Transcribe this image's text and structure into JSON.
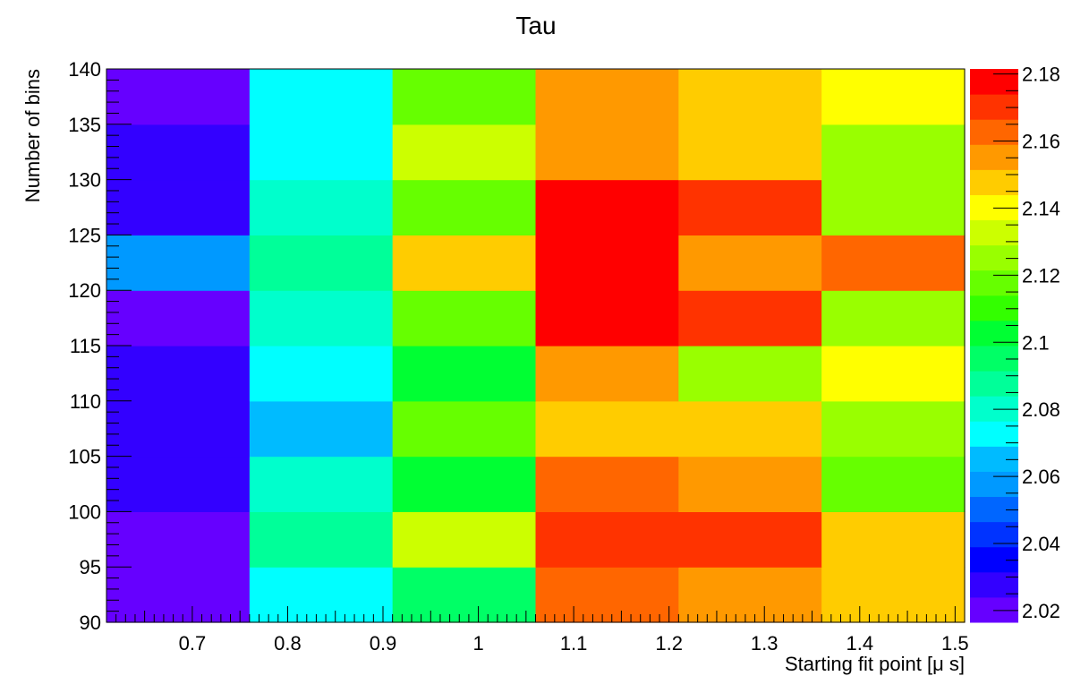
{
  "chart_data": {
    "type": "heatmap",
    "title": "Tau",
    "xlabel": "Starting fit point [μ s]",
    "ylabel": "Number of bins",
    "x_range": [
      0.61,
      1.51
    ],
    "y_range": [
      90,
      140
    ],
    "x_bin_edges": [
      0.61,
      0.76,
      0.91,
      1.06,
      1.21,
      1.36,
      1.51
    ],
    "y_bin_edges": [
      90,
      95,
      100,
      105,
      110,
      115,
      120,
      125,
      130,
      135,
      140
    ],
    "x_ticks": [
      "0.7",
      "0.8",
      "0.9",
      "1",
      "1.1",
      "1.2",
      "1.3",
      "1.4",
      "1.5"
    ],
    "x_tick_values": [
      0.7,
      0.8,
      0.9,
      1.0,
      1.1,
      1.2,
      1.3,
      1.4,
      1.5
    ],
    "y_ticks": [
      "90",
      "95",
      "100",
      "105",
      "110",
      "115",
      "120",
      "125",
      "130",
      "135",
      "140"
    ],
    "y_tick_values": [
      90,
      95,
      100,
      105,
      110,
      115,
      120,
      125,
      130,
      135,
      140
    ],
    "z_range": [
      2.0165,
      2.1815
    ],
    "z_ticks": [
      "2.02",
      "2.04",
      "2.06",
      "2.08",
      "2.1",
      "2.12",
      "2.14",
      "2.16",
      "2.18"
    ],
    "z_tick_values": [
      2.02,
      2.04,
      2.06,
      2.08,
      2.1,
      2.12,
      2.14,
      2.16,
      2.18
    ],
    "palette": [
      "#6600ff",
      "#3300ff",
      "#0000ff",
      "#0033ff",
      "#0066ff",
      "#0099ff",
      "#00bbff",
      "#00ffff",
      "#00ffcc",
      "#00ff99",
      "#00ff66",
      "#00ff33",
      "#33ff00",
      "#66ff00",
      "#99ff00",
      "#ccff00",
      "#ffff00",
      "#ffcc00",
      "#ff9900",
      "#ff6600",
      "#ff3300",
      "#ff0000"
    ],
    "values": [
      [
        2.023,
        2.073,
        2.095,
        2.163,
        2.156,
        2.145
      ],
      [
        2.021,
        2.091,
        2.134,
        2.173,
        2.173,
        2.145
      ],
      [
        2.03,
        2.084,
        2.104,
        2.165,
        2.156,
        2.118
      ],
      [
        2.03,
        2.066,
        2.118,
        2.147,
        2.147,
        2.126
      ],
      [
        2.03,
        2.076,
        2.105,
        2.156,
        2.129,
        2.138
      ],
      [
        2.022,
        2.084,
        2.117,
        2.181,
        2.173,
        2.126
      ],
      [
        2.055,
        2.091,
        2.146,
        2.181,
        2.156,
        2.165
      ],
      [
        2.03,
        2.084,
        2.118,
        2.181,
        2.173,
        2.126
      ],
      [
        2.03,
        2.076,
        2.131,
        2.156,
        2.146,
        2.123
      ],
      [
        2.022,
        2.076,
        2.118,
        2.156,
        2.146,
        2.138
      ]
    ]
  }
}
